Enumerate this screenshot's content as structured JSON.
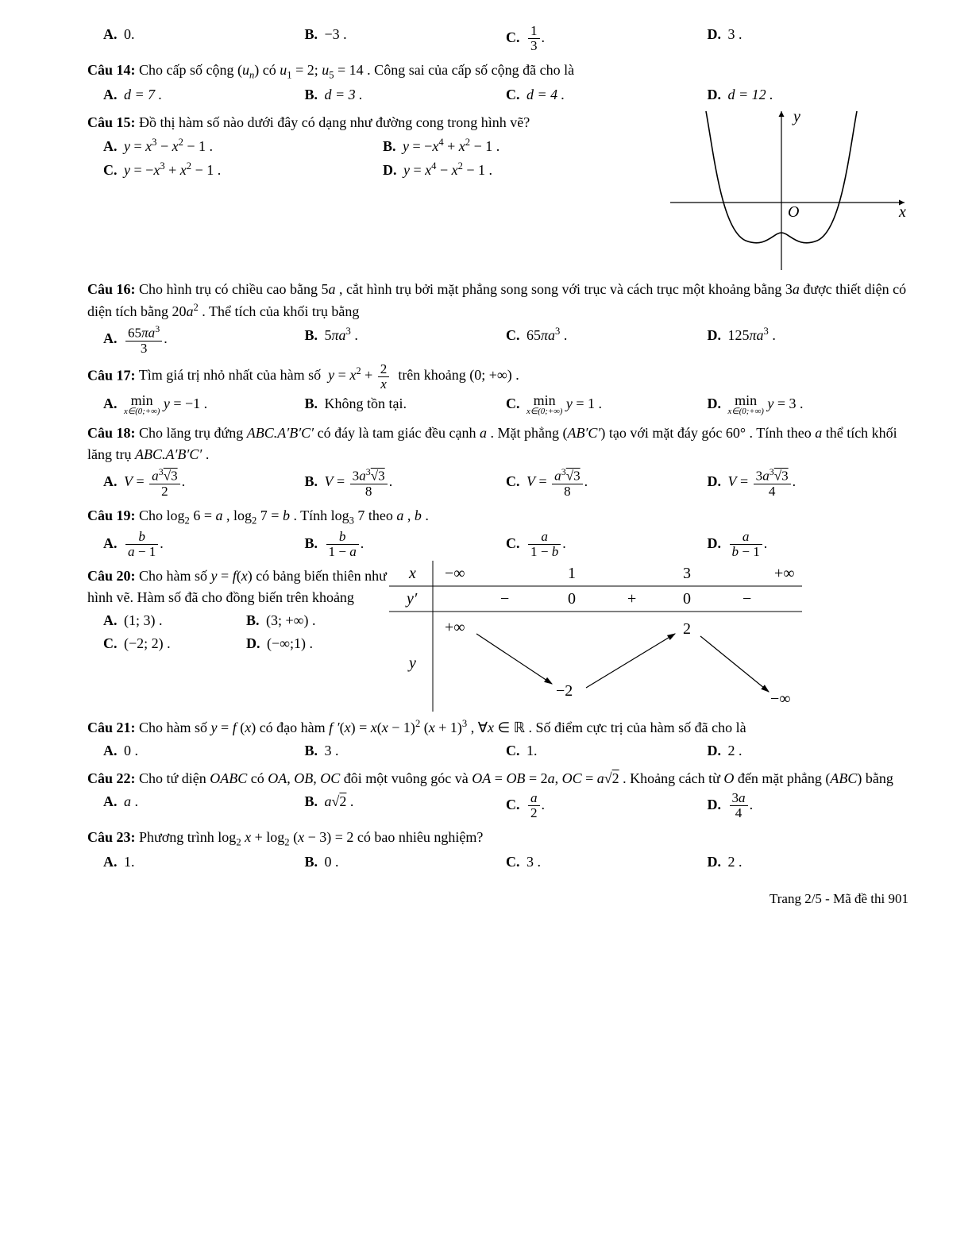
{
  "background_color": "#ffffff",
  "text_color": "#000000",
  "font_family": "Times New Roman",
  "base_fontsize_pt": 14,
  "q13_options": {
    "A": "0.",
    "B": "−3 .",
    "C_html": "<span class='frac'><span class='num'>1</span><span class='den'>3</span></span>.",
    "D": "3 ."
  },
  "q14": {
    "prompt_html": "Cho cấp số cộng (<span class='italic'>u<sub>n</sub></span>) có <span class='italic'>u</span><sub>1</sub> = 2; <span class='italic'>u</span><sub>5</sub> = 14 . Công sai của cấp số cộng đã cho là",
    "A": "d = 7 .",
    "B": "d = 3 .",
    "C": "d = 4 .",
    "D": "d = 12 ."
  },
  "q15": {
    "prompt": "Đồ thị hàm số nào dưới đây có dạng như đường cong trong hình vẽ?",
    "A_html": "<span class='italic'>y</span> = <span class='italic'>x</span><sup>3</sup> − <span class='italic'>x</span><sup>2</sup> − 1 .",
    "B_html": "<span class='italic'>y</span> = −<span class='italic'>x</span><sup>4</sup> + <span class='italic'>x</span><sup>2</sup> − 1 .",
    "C_html": "<span class='italic'>y</span> = −<span class='italic'>x</span><sup>3</sup> + <span class='italic'>x</span><sup>2</sup> − 1 .",
    "D_html": "<span class='italic'>y</span> = <span class='italic'>x</span><sup>4</sup> − <span class='italic'>x</span><sup>2</sup> − 1 .",
    "graph": {
      "type": "function-curve",
      "stroke": "#000000",
      "stroke_width": 1.4,
      "axis_color": "#000000",
      "x_label": "x",
      "y_label": "y",
      "origin_label": "O",
      "x_range": [
        -2.2,
        2.2
      ],
      "y_range": [
        -1.6,
        2.4
      ],
      "local_min_y": -1.25,
      "local_max_y": -1.0
    }
  },
  "q16": {
    "prompt_html": "Cho hình trụ có chiều cao bằng 5<span class='italic'>a</span> , cắt hình trụ bởi mặt phẳng song song với trục và cách trục một khoảng bằng 3<span class='italic'>a</span> được thiết diện có diện tích bằng 20<span class='italic'>a</span><sup>2</sup> . Thể tích của khối trụ bằng",
    "A_html": "<span class='frac'><span class='num'>65<span class='italic'>πa</span><sup>3</sup></span><span class='den'>3</span></span>.",
    "B_html": "5<span class='italic'>πa</span><sup>3</sup> .",
    "C_html": "65<span class='italic'>πa</span><sup>3</sup> .",
    "D_html": "125<span class='italic'>πa</span><sup>3</sup> ."
  },
  "q17": {
    "prompt_html": "Tìm giá trị nhỏ nhất của hàm số &nbsp;<span class='italic'>y</span> = <span class='italic'>x</span><sup>2</sup> + <span class='frac'><span class='num'>2</span><span class='den'><span class='italic'>x</span></span></span>&nbsp; trên khoảng (0; +∞) .",
    "A_html": "<span class='sub-below'><span class='top'>min</span><span class='bot italic'>x∈(0;+∞)</span></span> <span class='italic'>y</span> = −1 .",
    "B": "Không tồn tại.",
    "C_html": "<span class='sub-below'><span class='top'>min</span><span class='bot italic'>x∈(0;+∞)</span></span> <span class='italic'>y</span> = 1 .",
    "D_html": "<span class='sub-below'><span class='top'>min</span><span class='bot italic'>x∈(0;+∞)</span></span> <span class='italic'>y</span> = 3 ."
  },
  "q18": {
    "prompt_html": "Cho lăng trụ đứng <span class='italic'>ABC.A′B′C′</span> có đáy là tam giác đều cạnh <span class='italic'>a</span> . Mặt phẳng (<span class='italic'>AB′C′</span>) tạo với mặt đáy góc 60° . Tính theo <span class='italic'>a</span> thể tích khối lăng trụ <span class='italic'>ABC.A′B′C′</span> .",
    "A_html": "<span class='italic'>V</span> = <span class='frac'><span class='num'><span class='italic'>a</span><sup>3</sup><span class='sqrt'>√3</span></span><span class='den'>2</span></span>.",
    "B_html": "<span class='italic'>V</span> = <span class='frac'><span class='num'>3<span class='italic'>a</span><sup>3</sup><span class='sqrt'>√3</span></span><span class='den'>8</span></span>.",
    "C_html": "<span class='italic'>V</span> = <span class='frac'><span class='num'><span class='italic'>a</span><sup>3</sup><span class='sqrt'>√3</span></span><span class='den'>8</span></span>.",
    "D_html": "<span class='italic'>V</span> = <span class='frac'><span class='num'>3<span class='italic'>a</span><sup>3</sup><span class='sqrt'>√3</span></span><span class='den'>4</span></span>."
  },
  "q19": {
    "prompt_html": "Cho log<sub>2</sub> 6 = <span class='italic'>a</span> , log<sub>2</sub> 7 = <span class='italic'>b</span> . Tính log<sub>3</sub> 7 theo <span class='italic'>a</span> , <span class='italic'>b</span> .",
    "A_html": "<span class='frac'><span class='num italic'>b</span><span class='den'><span class='italic'>a</span> − 1</span></span>.",
    "B_html": "<span class='frac'><span class='num italic'>b</span><span class='den'>1 − <span class='italic'>a</span></span></span>.",
    "C_html": "<span class='frac'><span class='num italic'>a</span><span class='den'>1 − <span class='italic'>b</span></span></span>.",
    "D_html": "<span class='frac'><span class='num italic'>a</span><span class='den'><span class='italic'>b</span> − 1</span></span>."
  },
  "q20": {
    "prompt_html": "Cho hàm số <span class='italic'>y</span> = <span class='italic'>f</span>(<span class='italic'>x</span>) có bảng biến thiên như hình vẽ. Hàm số đã cho đồng biến trên khoảng",
    "A": "(1; 3) .",
    "B": "(3; +∞) .",
    "C": "(−2; 2) .",
    "D": "(−∞;1) .",
    "table": {
      "type": "variation-table",
      "x_row": [
        "−∞",
        "1",
        "3",
        "+∞"
      ],
      "yprime_row": [
        "−",
        "0",
        "+",
        "0",
        "−"
      ],
      "y_values": {
        "left_limit": "+∞",
        "at_1": "−2",
        "at_3": "2",
        "right_limit": "−∞"
      },
      "text_color": "#000000",
      "line_color": "#000000",
      "fontsize": 20
    }
  },
  "q21": {
    "prompt_html": "Cho hàm số <span class='italic'>y</span> = <span class='italic'>f</span> (<span class='italic'>x</span>) có đạo hàm <span class='italic'>f ′</span>(<span class='italic'>x</span>) = <span class='italic'>x</span>(<span class='italic'>x</span> − 1)<sup>2</sup> (<span class='italic'>x</span> + 1)<sup>3</sup> , ∀<span class='italic'>x</span> ∈ ℝ . Số điểm cực trị của hàm số đã cho là",
    "A": "0 .",
    "B": "3 .",
    "C": "1.",
    "D": "2 ."
  },
  "q22": {
    "prompt_html": "Cho tứ diện <span class='italic'>OABC</span> có <span class='italic'>OA</span>, <span class='italic'>OB</span>, <span class='italic'>OC</span> đôi một vuông góc và <span class='italic'>OA</span> = <span class='italic'>OB</span> = 2<span class='italic'>a</span>, <span class='italic'>OC</span> = <span class='italic'>a</span>√<span class='sqrt'>2</span> . Khoảng cách từ <span class='italic'>O</span> đến mặt phẳng (<span class='italic'>ABC</span>) bằng",
    "A_html": "<span class='italic'>a</span> .",
    "B_html": "<span class='italic'>a</span>√<span class='sqrt'>2</span> .",
    "C_html": "<span class='frac'><span class='num italic'>a</span><span class='den'>2</span></span>.",
    "D_html": "<span class='frac'><span class='num'>3<span class='italic'>a</span></span><span class='den'>4</span></span>."
  },
  "q23": {
    "prompt_html": "Phương trình log<sub>2</sub> <span class='italic'>x</span> + log<sub>2</sub> (<span class='italic'>x</span> − 3) = 2 có bao nhiêu nghiệm?",
    "A": "1.",
    "B": "0 .",
    "C": "3 .",
    "D": "2 ."
  },
  "footer": "Trang 2/5 - Mã đề thi 901"
}
